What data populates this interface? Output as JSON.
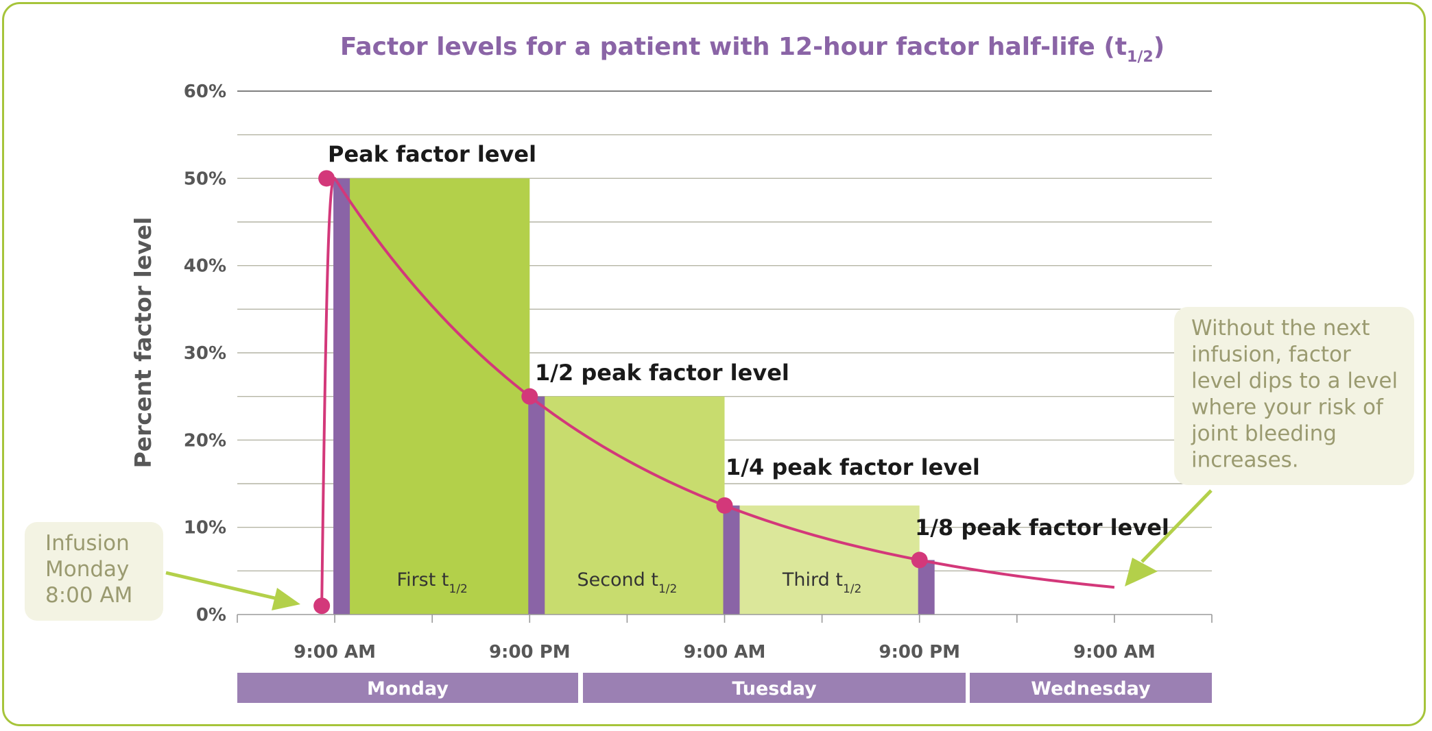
{
  "title": "Factor levels for a patient with 12-hour factor half-life (t",
  "title_sub": "1/2",
  "title_end": ")",
  "colors": {
    "frame": "#a6c43a",
    "purple": "#8a64a6",
    "curve": "#d3387a",
    "green1": "#b3d04a",
    "green2": "#c8dc6e",
    "green3": "#dbe79a",
    "callout_bg": "#f3f3e3",
    "day_bar": "#9b80b3"
  },
  "annotations": {
    "peak": "Peak factor level",
    "half": "1/2 peak factor level",
    "quarter": "1/4 peak factor level",
    "eighth": "1/8 peak factor level",
    "first": "First t",
    "second": "Second t",
    "third": "Third t",
    "half_life_sub": "1/2",
    "infusion": [
      "Infusion",
      "Monday",
      "8:00 AM"
    ],
    "warning": [
      "Without the next",
      "infusion, factor",
      "level dips to a level",
      "where your risk of",
      "joint bleeding",
      "increases."
    ]
  },
  "days": [
    "Monday",
    "Tuesday",
    "Wednesday"
  ],
  "chart_data": {
    "type": "line",
    "title": "Factor levels for a patient with 12-hour factor half-life (t1/2)",
    "ylabel": "Percent factor level",
    "xlabel": "",
    "x_unit": "hours after Monday 9:00 AM",
    "x_ticks": [
      {
        "x": 0,
        "label": "9:00 AM"
      },
      {
        "x": 12,
        "label": "9:00 PM"
      },
      {
        "x": 24,
        "label": "9:00 AM"
      },
      {
        "x": 36,
        "label": "9:00 PM"
      },
      {
        "x": 48,
        "label": "9:00 AM"
      }
    ],
    "y_ticks": [
      {
        "y": 0,
        "label": "0%"
      },
      {
        "y": 10,
        "label": "10%"
      },
      {
        "y": 20,
        "label": "20%"
      },
      {
        "y": 30,
        "label": "30%"
      },
      {
        "y": 40,
        "label": "40%"
      },
      {
        "y": 50,
        "label": "50%"
      },
      {
        "y": 60,
        "label": "60%"
      }
    ],
    "xlim": [
      -6,
      54
    ],
    "ylim": [
      0,
      60
    ],
    "grid": true,
    "series": [
      {
        "name": "Factor level",
        "x": [
          -0.8,
          0,
          3,
          6,
          9,
          12,
          15,
          18,
          21,
          24,
          27,
          30,
          33,
          36,
          40,
          44,
          48
        ],
        "y": [
          1,
          50,
          41.7,
          35.4,
          29.7,
          25,
          21,
          17.7,
          14.9,
          12.5,
          10.5,
          8.8,
          7.4,
          6.25,
          5,
          3.9,
          3
        ]
      }
    ],
    "key_points": [
      {
        "x": -0.8,
        "y": 1,
        "label": "Infusion Monday 8:00 AM"
      },
      {
        "x": 0,
        "y": 50,
        "label": "Peak factor level"
      },
      {
        "x": 12,
        "y": 25,
        "label": "1/2 peak factor level"
      },
      {
        "x": 24,
        "y": 12.5,
        "label": "1/4 peak factor level"
      },
      {
        "x": 36,
        "y": 6.25,
        "label": "1/8 peak factor level"
      }
    ],
    "bars": [
      {
        "x": 0,
        "value": 50
      },
      {
        "x": 12,
        "value": 25
      },
      {
        "x": 24,
        "value": 12.5
      },
      {
        "x": 36,
        "value": 6.25
      }
    ],
    "regions": [
      {
        "label": "First t1/2",
        "x0": 0,
        "x1": 12,
        "level": 50
      },
      {
        "label": "Second t1/2",
        "x0": 12,
        "x1": 24,
        "level": 25
      },
      {
        "label": "Third t1/2",
        "x0": 24,
        "x1": 36,
        "level": 12.5
      }
    ]
  }
}
